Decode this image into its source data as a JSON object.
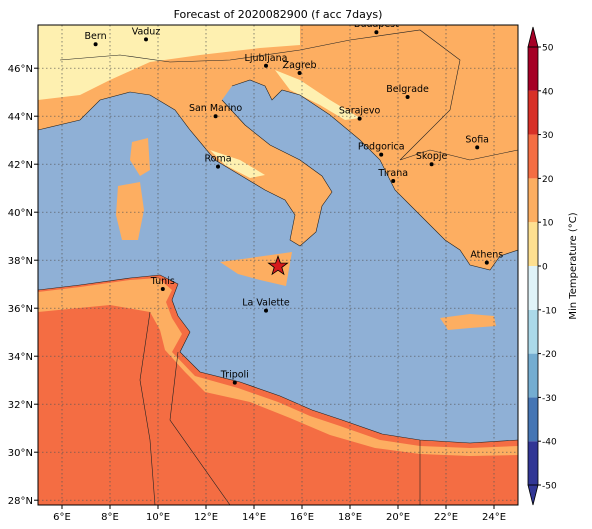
{
  "chart_data": {
    "type": "map",
    "title": "Forecast of 2020082900 (f acc 7days)",
    "xlim": [
      5,
      25
    ],
    "ylim": [
      27.8,
      47.8
    ],
    "xticks": [
      {
        "value": 6,
        "label": "6°E"
      },
      {
        "value": 8,
        "label": "8°E"
      },
      {
        "value": 10,
        "label": "10°E"
      },
      {
        "value": 12,
        "label": "12°E"
      },
      {
        "value": 14,
        "label": "14°E"
      },
      {
        "value": 16,
        "label": "16°E"
      },
      {
        "value": 18,
        "label": "18°E"
      },
      {
        "value": 20,
        "label": "20°E"
      },
      {
        "value": 22,
        "label": "22°E"
      },
      {
        "value": 24,
        "label": "24°E"
      }
    ],
    "yticks": [
      {
        "value": 28,
        "label": "28°N"
      },
      {
        "value": 30,
        "label": "30°N"
      },
      {
        "value": 32,
        "label": "32°N"
      },
      {
        "value": 34,
        "label": "34°N"
      },
      {
        "value": 36,
        "label": "36°N"
      },
      {
        "value": 38,
        "label": "38°N"
      },
      {
        "value": 40,
        "label": "40°N"
      },
      {
        "value": 42,
        "label": "42°N"
      },
      {
        "value": 44,
        "label": "44°N"
      },
      {
        "value": 46,
        "label": "46°N"
      }
    ],
    "grid": true,
    "cities": [
      {
        "name": "Bern",
        "lon": 7.4,
        "lat": 47.0
      },
      {
        "name": "Vaduz",
        "lon": 9.5,
        "lat": 47.2
      },
      {
        "name": "Budapest",
        "lon": 19.1,
        "lat": 47.5
      },
      {
        "name": "Ljubljana",
        "lon": 14.5,
        "lat": 46.1
      },
      {
        "name": "Zagreb",
        "lon": 15.9,
        "lat": 45.8
      },
      {
        "name": "Belgrade",
        "lon": 20.4,
        "lat": 44.8
      },
      {
        "name": "San Marino",
        "lon": 12.4,
        "lat": 44.0
      },
      {
        "name": "Sarajevo",
        "lon": 18.4,
        "lat": 43.9
      },
      {
        "name": "Sofia",
        "lon": 23.3,
        "lat": 42.7
      },
      {
        "name": "Podgorica",
        "lon": 19.3,
        "lat": 42.4
      },
      {
        "name": "Skopje",
        "lon": 21.4,
        "lat": 42.0
      },
      {
        "name": "Roma",
        "lon": 12.5,
        "lat": 41.9
      },
      {
        "name": "Tirana",
        "lon": 19.8,
        "lat": 41.3
      },
      {
        "name": "Athens",
        "lon": 23.7,
        "lat": 37.9
      },
      {
        "name": "Tunis",
        "lon": 10.2,
        "lat": 36.8
      },
      {
        "name": "La Valette",
        "lon": 14.5,
        "lat": 35.9
      },
      {
        "name": "Tripoli",
        "lon": 13.2,
        "lat": 32.9
      }
    ],
    "marker": {
      "lon": 15.0,
      "lat": 37.75,
      "color": "#d7191c"
    },
    "colorbar": {
      "label": "Min Temperature (°C)",
      "clim": [
        -50,
        50
      ],
      "ticks": [
        -50,
        -40,
        -30,
        -20,
        -10,
        0,
        10,
        20,
        30,
        40,
        50
      ],
      "colors": [
        "#313695",
        "#4575b4",
        "#74add1",
        "#abd9e9",
        "#e0f3f8",
        "#fee090",
        "#fdae61",
        "#f46d43",
        "#d73027",
        "#a50026"
      ]
    }
  }
}
